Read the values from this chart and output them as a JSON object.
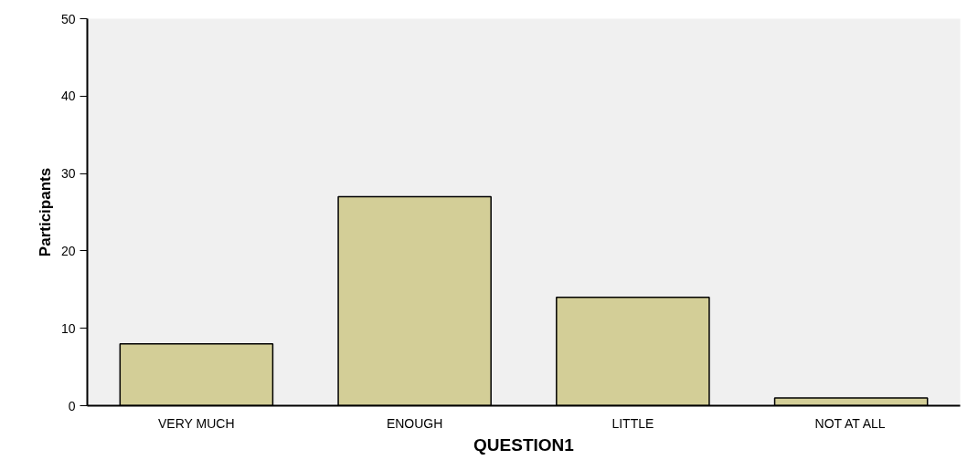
{
  "chart_data": {
    "type": "bar",
    "xlabel": "QUESTION1",
    "ylabel": "Participants",
    "categories": [
      "VERY MUCH",
      "ENOUGH",
      "LITTLE",
      "NOT AT ALL"
    ],
    "values": [
      8,
      27,
      14,
      1
    ],
    "color": "#d3ce97",
    "ylim": [
      0,
      50
    ],
    "yticks": [
      0,
      10,
      20,
      30,
      40,
      50
    ],
    "grid": false
  }
}
